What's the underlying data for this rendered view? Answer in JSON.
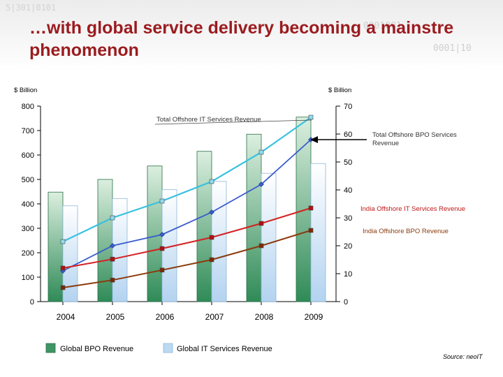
{
  "title_line1": "…with global service delivery becoming a mainstre",
  "title_line2": "phenomenon",
  "banner_digits": [
    "5|301|0101",
    "0001001",
    "0001|10"
  ],
  "source": "Source: neoIT",
  "colors": {
    "title": "#9b1b1f",
    "bpo_bar": "#4a9a6a",
    "it_bar": "#bcd9f2",
    "offshore_it": "#38c1e0",
    "offshore_bpo": "#3a5ccc",
    "india_it": "#d42020",
    "india_bpo": "#8b3a0c"
  },
  "chart_data": {
    "type": "bar",
    "categories": [
      "2004",
      "2005",
      "2006",
      "2007",
      "2008",
      "2009"
    ],
    "left_axis": {
      "label": "$ Billion",
      "ticks": [
        "800",
        "700",
        "600",
        "500",
        "400",
        "300",
        "200",
        "100",
        "0"
      ],
      "ylim": [
        0,
        800
      ]
    },
    "right_axis": {
      "label": "$ Billion",
      "ticks": [
        "70",
        "60",
        "50",
        "40",
        "30",
        "20",
        "10",
        "0"
      ],
      "ylim": [
        0,
        70
      ]
    },
    "bar_series": [
      {
        "name": "Global BPO Revenue",
        "axis": "left",
        "values": [
          448,
          500,
          555,
          615,
          685,
          755
        ]
      },
      {
        "name": "Global IT Services Revenue",
        "axis": "left",
        "values": [
          392,
          422,
          458,
          492,
          525,
          565
        ]
      }
    ],
    "line_series": [
      {
        "name": "Total Offshore IT Services Revenue",
        "axis": "right",
        "values": [
          21.5,
          30,
          36,
          43,
          53.5,
          66
        ]
      },
      {
        "name": "Total Offshore BPO Services Revenue",
        "axis": "right",
        "values": [
          11,
          20,
          24,
          32,
          42,
          58
        ]
      },
      {
        "name": "India Offshore IT Services Revenue",
        "axis": "right",
        "values": [
          12,
          15.2,
          19,
          23,
          28,
          33.5
        ]
      },
      {
        "name": "India Offshore BPO Revenue",
        "axis": "right",
        "values": [
          5,
          7.7,
          11.3,
          15,
          20,
          25.5
        ]
      }
    ],
    "legend": [
      "Global BPO Revenue",
      "Global IT Services Revenue"
    ]
  }
}
